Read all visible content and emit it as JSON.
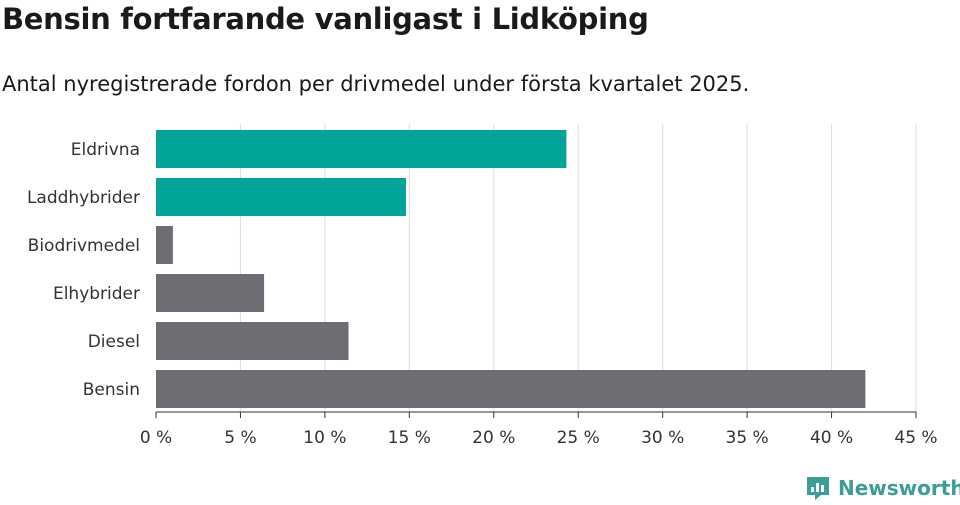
{
  "title": "Bensin fortfarande vanligast i Lidköping",
  "subtitle": "Antal nyregistrerade fordon per drivmedel under första kvartalet 2025.",
  "brand": {
    "name": "Newsworthy",
    "icon": "newsworthy-logo-icon",
    "color": "#3a9e96"
  },
  "colors": {
    "highlight": "#00a499",
    "default": "#6e6d73",
    "grid": "#dddddd"
  },
  "chart_data": {
    "type": "bar",
    "orientation": "horizontal",
    "title": "Bensin fortfarande vanligast i Lidköping",
    "subtitle": "Antal nyregistrerade fordon per drivmedel under första kvartalet 2025.",
    "categories": [
      "Eldrivna",
      "Laddhybrider",
      "Biodrivmedel",
      "Elhybrider",
      "Diesel",
      "Bensin"
    ],
    "values": [
      24.3,
      14.8,
      1.0,
      6.4,
      11.4,
      42.0
    ],
    "highlighted": [
      true,
      true,
      false,
      false,
      false,
      false
    ],
    "xlim": [
      0,
      45
    ],
    "xticks": [
      0,
      5,
      10,
      15,
      20,
      25,
      30,
      35,
      40,
      45
    ],
    "tick_labels": [
      "0 %",
      "5 %",
      "10 %",
      "15 %",
      "20 %",
      "25 %",
      "30 %",
      "35 %",
      "40 %",
      "45 %"
    ],
    "xlabel": "",
    "ylabel": "",
    "grid": true,
    "legend": "none"
  }
}
